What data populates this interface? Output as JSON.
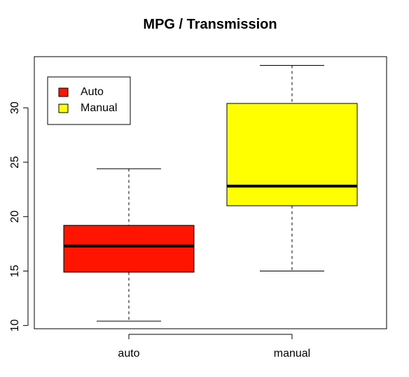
{
  "chart_data": {
    "type": "boxplot",
    "title": "MPG / Transmission",
    "xlabel": "",
    "ylabel": "",
    "categories": [
      "auto",
      "manual"
    ],
    "ylim": [
      9.7,
      34.7
    ],
    "yticks": [
      10,
      15,
      20,
      25,
      30
    ],
    "grid": false,
    "boxes": [
      {
        "category": "auto",
        "min": 10.4,
        "q1": 14.9,
        "median": 17.3,
        "q3": 19.2,
        "max": 24.4,
        "color": "#ff1400"
      },
      {
        "category": "manual",
        "min": 15.0,
        "q1": 21.0,
        "median": 22.8,
        "q3": 30.4,
        "max": 33.9,
        "color": "#ffff00"
      }
    ],
    "legend": {
      "placement": "top-left",
      "entries": [
        {
          "label": "Auto",
          "color": "#ff1400"
        },
        {
          "label": "Manual",
          "color": "#ffff00"
        }
      ]
    }
  }
}
